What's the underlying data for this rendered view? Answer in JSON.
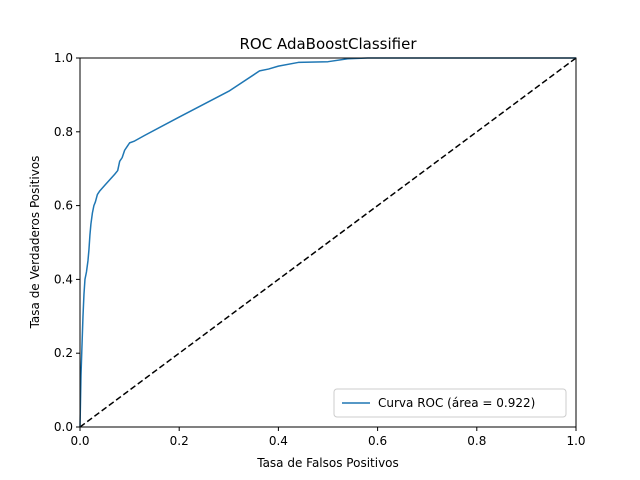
{
  "chart_data": {
    "type": "line",
    "title": "ROC AdaBoostClassifier",
    "xlabel": "Tasa de Falsos Positivos",
    "ylabel": "Tasa de Verdaderos Positivos",
    "xlim": [
      0.0,
      1.0
    ],
    "ylim": [
      0.0,
      1.0
    ],
    "xticks": [
      "0.0",
      "0.2",
      "0.4",
      "0.6",
      "0.8",
      "1.0"
    ],
    "yticks": [
      "0.0",
      "0.2",
      "0.4",
      "0.6",
      "0.8",
      "1.0"
    ],
    "grid": false,
    "legend_position": "lower-right",
    "series": [
      {
        "name": "Curva ROC (área = 0.922)",
        "color": "#1f77b4",
        "style": "solid",
        "x": [
          0.0,
          0.002,
          0.004,
          0.006,
          0.008,
          0.01,
          0.013,
          0.016,
          0.018,
          0.02,
          0.022,
          0.025,
          0.028,
          0.031,
          0.035,
          0.04,
          0.05,
          0.06,
          0.07,
          0.076,
          0.08,
          0.085,
          0.09,
          0.095,
          0.1,
          0.11,
          0.13,
          0.2,
          0.3,
          0.362,
          0.38,
          0.4,
          0.44,
          0.5,
          0.54,
          0.58,
          0.6,
          1.0
        ],
        "y": [
          0.0,
          0.14,
          0.22,
          0.3,
          0.36,
          0.4,
          0.42,
          0.45,
          0.48,
          0.52,
          0.55,
          0.58,
          0.6,
          0.61,
          0.63,
          0.64,
          0.655,
          0.67,
          0.685,
          0.695,
          0.72,
          0.73,
          0.75,
          0.76,
          0.77,
          0.775,
          0.79,
          0.84,
          0.91,
          0.965,
          0.97,
          0.978,
          0.988,
          0.99,
          0.998,
          1.0,
          1.0,
          1.0
        ]
      }
    ],
    "reference_line": {
      "x": [
        0.0,
        1.0
      ],
      "y": [
        0.0,
        1.0
      ],
      "color": "#000000",
      "style": "dashed"
    }
  }
}
